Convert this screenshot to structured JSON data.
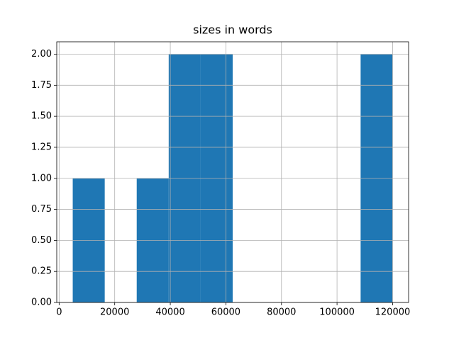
{
  "chart_data": {
    "type": "histogram",
    "title": "sizes in words",
    "bins": [
      4900,
      16410,
      27920,
      39430,
      50940,
      62450,
      73960,
      85470,
      96980,
      108490,
      120000
    ],
    "values": [
      1,
      0,
      1,
      2,
      2,
      0,
      0,
      0,
      0,
      2
    ],
    "color": "#1f77b4",
    "xlim": [
      -855,
      125755
    ],
    "xticks": [
      0,
      20000,
      40000,
      60000,
      80000,
      100000,
      120000
    ],
    "ylim": [
      0,
      2.1
    ],
    "yticks": [
      {
        "value": 0,
        "label": "0.00"
      },
      {
        "value": 0.25,
        "label": "0.25"
      },
      {
        "value": 0.5,
        "label": "0.50"
      },
      {
        "value": 0.75,
        "label": "0.75"
      },
      {
        "value": 1,
        "label": "1.00"
      },
      {
        "value": 1.25,
        "label": "1.25"
      },
      {
        "value": 1.5,
        "label": "1.50"
      },
      {
        "value": 1.75,
        "label": "1.75"
      },
      {
        "value": 2,
        "label": "2.00"
      }
    ],
    "grid": true
  }
}
